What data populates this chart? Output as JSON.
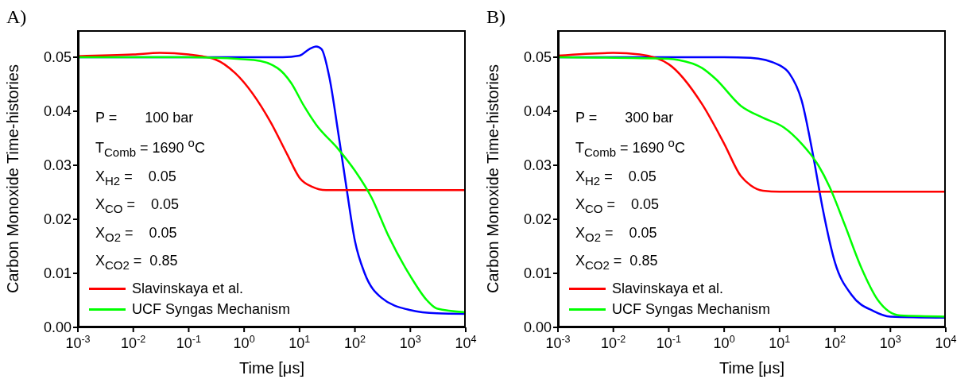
{
  "chart_data": [
    {
      "type": "line",
      "title": "A)",
      "xlabel": "Time [μs]",
      "ylabel": "Carbon Monoxide Time-histories",
      "log": "x",
      "xlim": [
        0.001,
        10000
      ],
      "xticks": [
        {
          "value": 0.001,
          "label": "10$^{-3}$"
        },
        {
          "value": 0.01,
          "label": "10$^{-2}$"
        },
        {
          "value": 0.1,
          "label": "10$^{-1}$"
        },
        {
          "value": 1,
          "label": "10$^{0}$"
        },
        {
          "value": 10,
          "label": "10$^{1}$"
        },
        {
          "value": 100,
          "label": "10$^{2}$"
        },
        {
          "value": 1000,
          "label": "10$^{3}$"
        },
        {
          "value": 10000,
          "label": "10$^{4}$"
        }
      ],
      "ylim": [
        0,
        0.055
      ],
      "yticks": [
        {
          "value": 0,
          "label": "0.00"
        },
        {
          "value": 0.01,
          "label": "0.01"
        },
        {
          "value": 0.02,
          "label": "0.02"
        },
        {
          "value": 0.03,
          "label": "0.03"
        },
        {
          "value": 0.04,
          "label": "0.04"
        },
        {
          "value": 0.05,
          "label": "0.05"
        }
      ],
      "legend": "bottom left",
      "annotations": [
        "P =       100 bar",
        "T$_{Comb}$ = 1690 $^{o}$C",
        "X$_{H2}$ =    0.05",
        "X$_{CO}$ =    0.05",
        "X$_{O2}$ =    0.05",
        "X$_{CO2}$ =  0.85"
      ],
      "series": [
        {
          "color": "#0000ff",
          "x": [
            0.001,
            1,
            5,
            10,
            15,
            20,
            25,
            35,
            50,
            70,
            100,
            150,
            300,
            1000,
            3000,
            10000
          ],
          "values": [
            0.05,
            0.05,
            0.05,
            0.0503,
            0.0515,
            0.052,
            0.0515,
            0.046,
            0.036,
            0.026,
            0.016,
            0.01,
            0.0055,
            0.0032,
            0.0026,
            0.0025
          ]
        },
        {
          "name": "Slavinskaya et al.",
          "color": "#ff0000",
          "x": [
            0.001,
            0.01,
            0.03,
            0.1,
            0.3,
            0.7,
            3,
            6,
            10,
            17,
            30,
            10000
          ],
          "values": [
            0.0502,
            0.0505,
            0.0508,
            0.0505,
            0.0496,
            0.047,
            0.038,
            0.032,
            0.0277,
            0.026,
            0.0254,
            0.0254
          ]
        },
        {
          "name": "UCF Syngas Mechanism",
          "color": "#00ff00",
          "x": [
            0.001,
            0.1,
            1.5,
            4,
            7,
            12,
            20,
            50,
            100,
            200,
            400,
            1000,
            2000,
            3000,
            10000
          ],
          "values": [
            0.05,
            0.05,
            0.0495,
            0.048,
            0.0453,
            0.041,
            0.0375,
            0.033,
            0.029,
            0.024,
            0.017,
            0.0095,
            0.005,
            0.0035,
            0.0028
          ]
        }
      ]
    },
    {
      "type": "line",
      "title": "B)",
      "xlabel": "Time [μs]",
      "ylabel": "Carbon Monoxide Time-histories",
      "log": "x",
      "xlim": [
        0.001,
        10000
      ],
      "xticks": [
        {
          "value": 0.001,
          "label": "10$^{-3}$"
        },
        {
          "value": 0.01,
          "label": "10$^{-2}$"
        },
        {
          "value": 0.1,
          "label": "10$^{-1}$"
        },
        {
          "value": 1,
          "label": "10$^{0}$"
        },
        {
          "value": 10,
          "label": "10$^{1}$"
        },
        {
          "value": 100,
          "label": "10$^{2}$"
        },
        {
          "value": 1000,
          "label": "10$^{3}$"
        },
        {
          "value": 10000,
          "label": "10$^{4}$"
        }
      ],
      "ylim": [
        0,
        0.055
      ],
      "yticks": [
        {
          "value": 0,
          "label": "0.00"
        },
        {
          "value": 0.01,
          "label": "0.01"
        },
        {
          "value": 0.02,
          "label": "0.02"
        },
        {
          "value": 0.03,
          "label": "0.03"
        },
        {
          "value": 0.04,
          "label": "0.04"
        },
        {
          "value": 0.05,
          "label": "0.05"
        }
      ],
      "legend": "bottom left",
      "annotations": [
        "P =       300 bar",
        "T$_{Comb}$ = 1690 $^{o}$C",
        "X$_{H2}$ =    0.05",
        "X$_{CO}$ =    0.05",
        "X$_{O2}$ =    0.05",
        "X$_{CO2}$ =  0.85"
      ],
      "series": [
        {
          "color": "#0000ff",
          "x": [
            0.001,
            0.1,
            1,
            3,
            10,
            15,
            25,
            40,
            60,
            100,
            200,
            500,
            1000,
            10000
          ],
          "values": [
            0.05,
            0.05,
            0.05,
            0.0499,
            0.0485,
            0.047,
            0.042,
            0.032,
            0.022,
            0.012,
            0.006,
            0.003,
            0.002,
            0.0018
          ]
        },
        {
          "name": "Slavinskaya et al.",
          "color": "#ff0000",
          "x": [
            0.001,
            0.01,
            0.03,
            0.1,
            0.4,
            1,
            2,
            3,
            5,
            10,
            10000
          ],
          "values": [
            0.0503,
            0.0508,
            0.0505,
            0.0487,
            0.0413,
            0.034,
            0.028,
            0.0263,
            0.0253,
            0.0251,
            0.0251
          ]
        },
        {
          "name": "UCF Syngas Mechanism",
          "color": "#00ff00",
          "x": [
            0.001,
            0.1,
            0.15,
            0.4,
            0.7,
            2,
            5,
            12,
            25,
            50,
            80,
            150,
            300,
            600,
            1500,
            10000
          ],
          "values": [
            0.05,
            0.0497,
            0.0495,
            0.048,
            0.046,
            0.041,
            0.0388,
            0.037,
            0.034,
            0.03,
            0.026,
            0.019,
            0.011,
            0.005,
            0.0022,
            0.002
          ]
        }
      ]
    }
  ]
}
